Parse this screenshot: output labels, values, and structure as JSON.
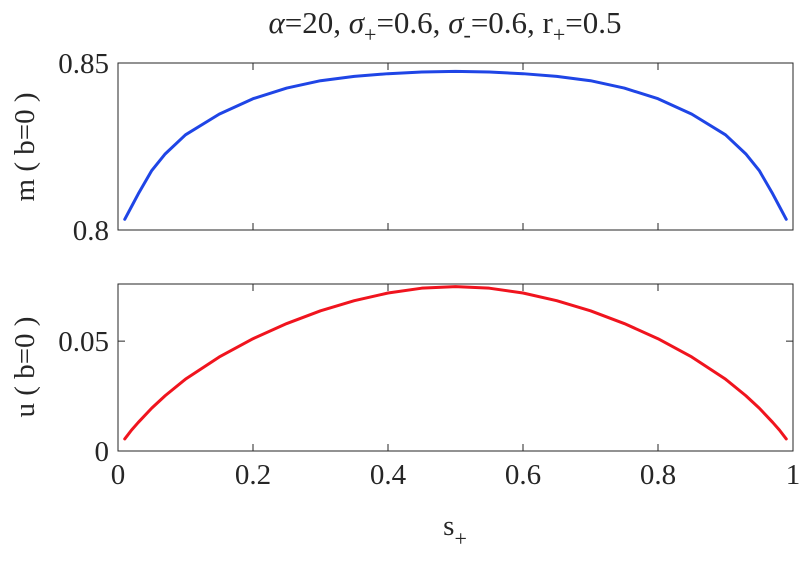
{
  "figure": {
    "title_parts": {
      "alpha": "α",
      "alpha_val": "=20, ",
      "sigma1": "σ",
      "sigma1_sub": "+",
      "sigma1_val": "=0.6, ",
      "sigma2": "σ",
      "sigma2_sub": "-",
      "sigma2_val": "=0.6, r",
      "r_sub": "+",
      "r_val": "=0.5"
    }
  },
  "chart_data": [
    {
      "type": "line",
      "ylabel": "m ( b=0 )",
      "xlim": [
        0,
        1
      ],
      "ylim": [
        0.8,
        0.85
      ],
      "yticks": [
        0.8,
        0.85
      ],
      "ytick_labels": [
        "0.8",
        "0.85"
      ],
      "xticks": [
        0,
        0.2,
        0.4,
        0.6,
        0.8,
        1
      ],
      "show_xtick_labels": false,
      "grid": false,
      "series": [
        {
          "color": "#1f45e6",
          "x": [
            0.01,
            0.02,
            0.03,
            0.05,
            0.07,
            0.1,
            0.15,
            0.2,
            0.25,
            0.3,
            0.35,
            0.4,
            0.45,
            0.5,
            0.55,
            0.6,
            0.65,
            0.7,
            0.75,
            0.8,
            0.85,
            0.9,
            0.93,
            0.95,
            0.97,
            0.98,
            0.99
          ],
          "y": [
            0.8032,
            0.807,
            0.8108,
            0.8178,
            0.8228,
            0.8285,
            0.8347,
            0.8393,
            0.8425,
            0.8447,
            0.846,
            0.8468,
            0.8473,
            0.8475,
            0.8473,
            0.8468,
            0.846,
            0.8447,
            0.8425,
            0.8393,
            0.8347,
            0.8285,
            0.8228,
            0.8178,
            0.8108,
            0.807,
            0.8032
          ]
        }
      ]
    },
    {
      "type": "line",
      "ylabel": "u ( b=0 )",
      "xlabel_base": "s",
      "xlabel_sub": "+",
      "xlim": [
        0,
        1
      ],
      "ylim": [
        0,
        0.076
      ],
      "yticks": [
        0,
        0.05
      ],
      "ytick_labels": [
        "0",
        "0.05"
      ],
      "xticks": [
        0,
        0.2,
        0.4,
        0.6,
        0.8,
        1
      ],
      "xtick_labels": [
        "0",
        "0.2",
        "0.4",
        "0.6",
        "0.8",
        "1"
      ],
      "grid": false,
      "series": [
        {
          "color": "#f0141e",
          "x": [
            0.01,
            0.02,
            0.03,
            0.05,
            0.07,
            0.1,
            0.15,
            0.2,
            0.25,
            0.3,
            0.35,
            0.4,
            0.45,
            0.5,
            0.55,
            0.6,
            0.65,
            0.7,
            0.75,
            0.8,
            0.85,
            0.9,
            0.93,
            0.95,
            0.97,
            0.98,
            0.99
          ],
          "y": [
            0.0055,
            0.0095,
            0.013,
            0.0195,
            0.0252,
            0.0327,
            0.0428,
            0.0511,
            0.058,
            0.0638,
            0.0684,
            0.0719,
            0.0741,
            0.0748,
            0.0741,
            0.0719,
            0.0684,
            0.0638,
            0.058,
            0.0511,
            0.0428,
            0.0327,
            0.0252,
            0.0195,
            0.013,
            0.0095,
            0.0055
          ]
        }
      ]
    }
  ]
}
